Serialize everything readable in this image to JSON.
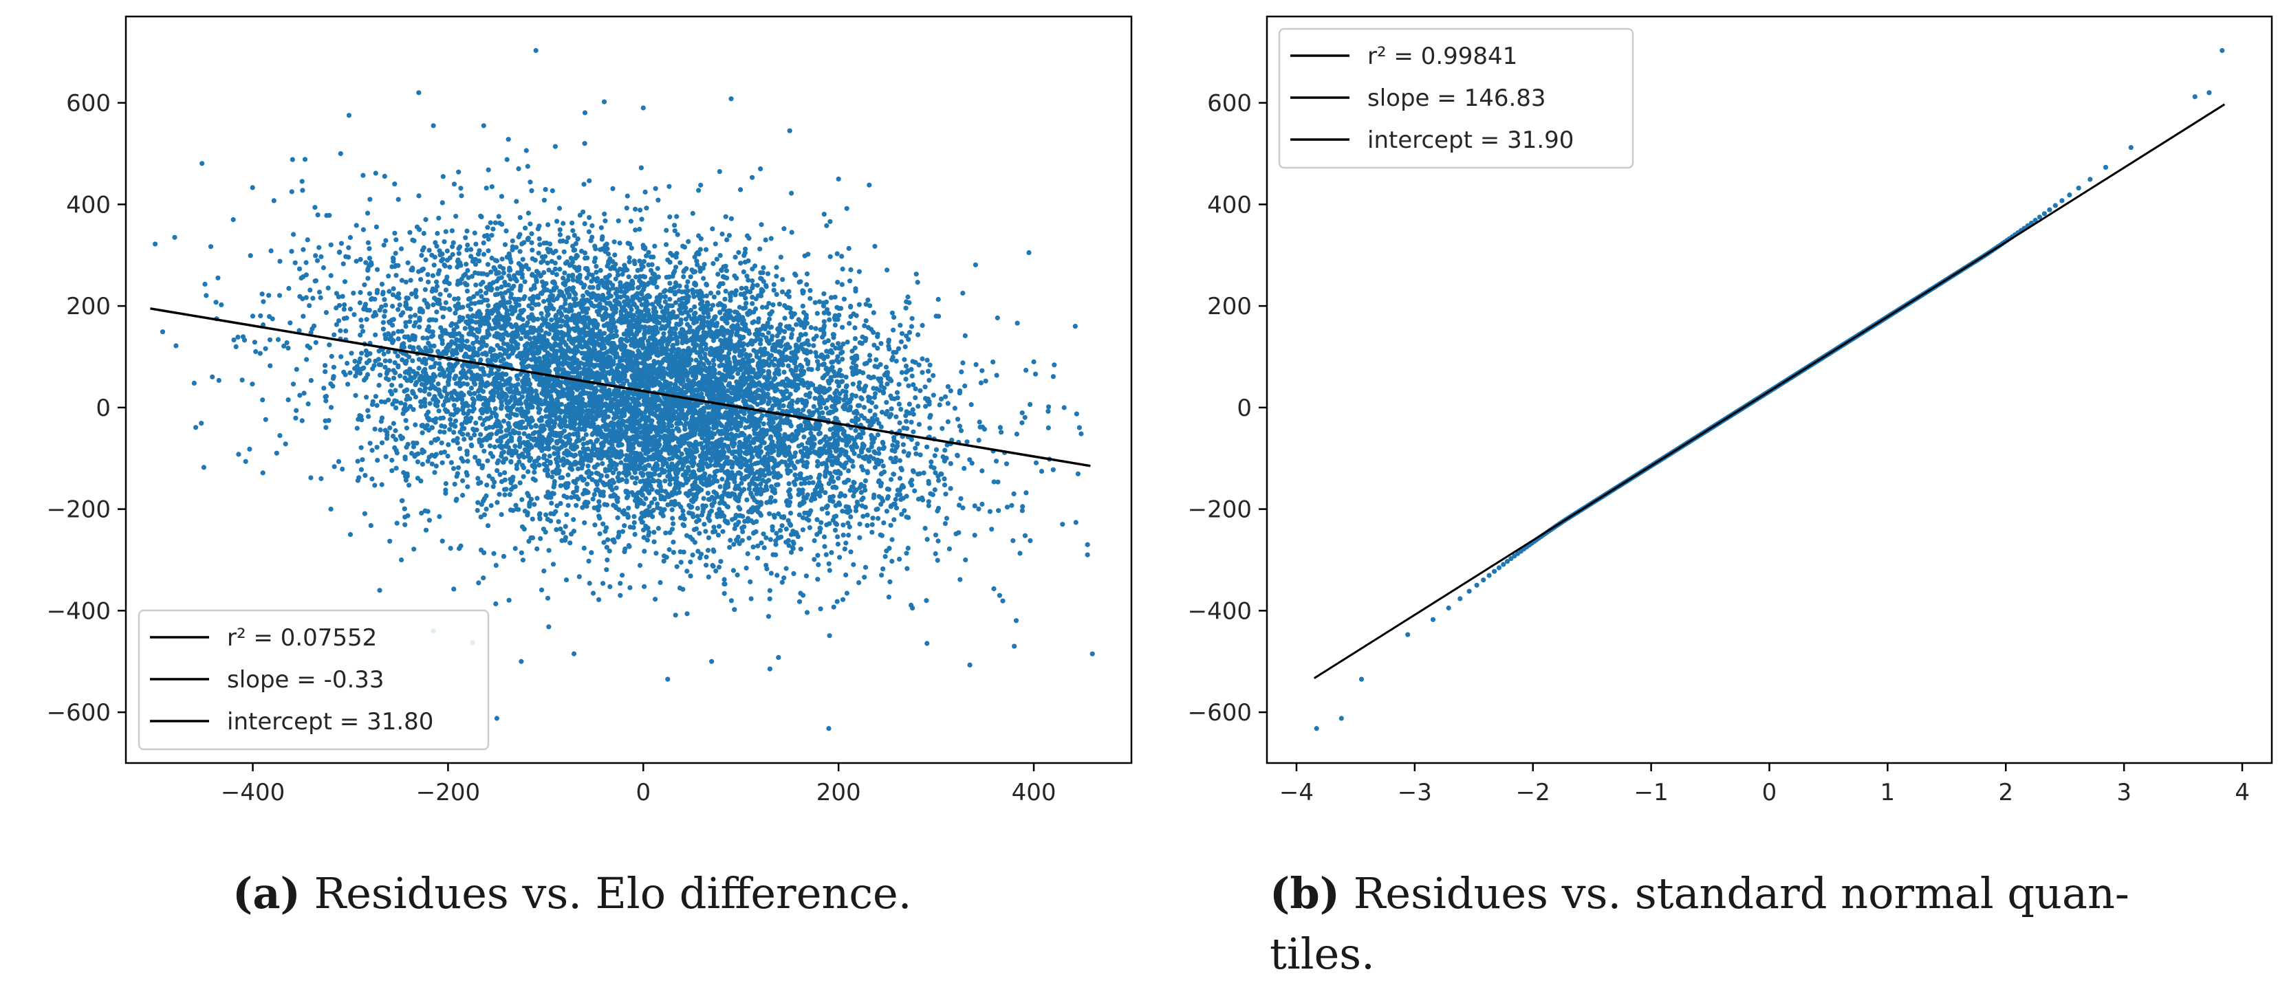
{
  "chart_data": [
    {
      "type": "scatter",
      "panel_label": "(a)",
      "caption": "Residues vs. Elo difference.",
      "xlim": [
        -530,
        500
      ],
      "ylim": [
        -700,
        770
      ],
      "xticks": [
        -400,
        -200,
        0,
        200,
        400
      ],
      "yticks": [
        -600,
        -400,
        -200,
        0,
        200,
        400,
        600
      ],
      "xtick_labels": [
        "−400",
        "−200",
        "0",
        "200",
        "400"
      ],
      "ytick_labels": [
        "−600",
        "−400",
        "−200",
        "0",
        "200",
        "400",
        "600"
      ],
      "grid": false,
      "legend_position": "lower-left",
      "point_color": "#1f77b4",
      "line_color": "#000000",
      "cloud": {
        "n": 9000,
        "x_mean": 0,
        "x_sd": 140,
        "y_sd": 140
      },
      "series": [
        {
          "outliers": [
            [
              -110,
              703
            ],
            [
              -230,
              620
            ],
            [
              -215,
              555
            ],
            [
              -310,
              500
            ],
            [
              90,
              608
            ],
            [
              -40,
              602
            ],
            [
              0,
              590
            ],
            [
              -500,
              322
            ],
            [
              -460,
              48
            ],
            [
              -360,
              425
            ],
            [
              -420,
              370
            ],
            [
              -400,
              180
            ],
            [
              -390,
              15
            ],
            [
              395,
              305
            ],
            [
              455,
              -270
            ],
            [
              455,
              -290
            ],
            [
              460,
              -485
            ],
            [
              190,
              -632
            ],
            [
              -150,
              -612
            ],
            [
              -175,
              -463
            ],
            [
              -215,
              -440
            ],
            [
              25,
              -535
            ],
            [
              70,
              -500
            ],
            [
              -330,
              -140
            ],
            [
              -320,
              -200
            ],
            [
              365,
              -370
            ],
            [
              380,
              -470
            ],
            [
              415,
              -40
            ],
            [
              400,
              90
            ],
            [
              -300,
              -250
            ],
            [
              -270,
              -360
            ],
            [
              -125,
              -500
            ],
            [
              120,
              470
            ],
            [
              200,
              450
            ],
            [
              150,
              545
            ],
            [
              -60,
              520
            ],
            [
              330,
              -300
            ],
            [
              290,
              -380
            ],
            [
              300,
              180
            ],
            [
              -280,
              410
            ]
          ]
        }
      ],
      "fit": {
        "x": [
          -505,
          458
        ],
        "y": [
          195,
          -115
        ]
      },
      "legend": [
        "r² = 0.07552",
        "slope = -0.33",
        "intercept = 31.80"
      ]
    },
    {
      "type": "scatter",
      "panel_label": "(b)",
      "caption_line1": "Residues vs. standard normal quan-",
      "caption_line2": "tiles.",
      "xlim": [
        -4.25,
        4.25
      ],
      "ylim": [
        -700,
        770
      ],
      "xticks": [
        -4,
        -3,
        -2,
        -1,
        0,
        1,
        2,
        3,
        4
      ],
      "yticks": [
        -600,
        -400,
        -200,
        0,
        200,
        400,
        600
      ],
      "xtick_labels": [
        "−4",
        "−3",
        "−2",
        "−1",
        "0",
        "1",
        "2",
        "3",
        "4"
      ],
      "ytick_labels": [
        "−600",
        "−400",
        "−200",
        "0",
        "200",
        "400",
        "600"
      ],
      "grid": false,
      "legend_position": "upper-left",
      "point_color": "#1f77b4",
      "line_color": "#000000",
      "quantile_points": {
        "n": 900
      },
      "series": [
        {
          "extremes": [
            [
              -3.83,
              -632
            ],
            [
              -3.62,
              -612
            ],
            [
              3.83,
              703
            ],
            [
              3.72,
              620
            ],
            [
              3.6,
              612
            ],
            [
              -3.45,
              -535
            ]
          ]
        }
      ],
      "fit": {
        "x": [
          -3.85,
          3.85
        ],
        "y": [
          -533,
          597
        ]
      },
      "legend": [
        "r² = 0.99841",
        "slope = 146.83",
        "intercept = 31.90"
      ]
    }
  ]
}
